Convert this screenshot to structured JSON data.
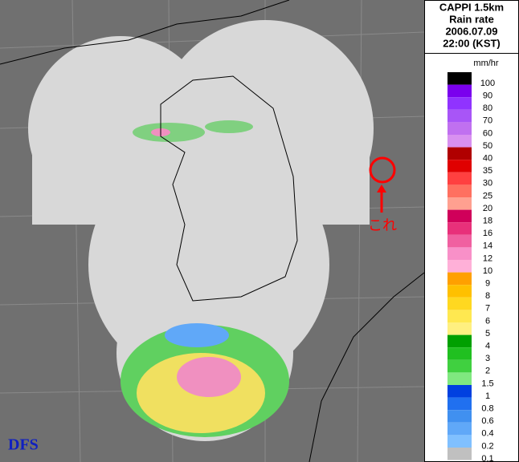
{
  "header": {
    "lines": [
      "CAPPI 1.5km",
      "Rain rate",
      "2006.07.09",
      "22:00 (KST)"
    ]
  },
  "legend": {
    "unit": "mm/hr",
    "items": [
      {
        "label": "100",
        "color": "#000000"
      },
      {
        "label": "90",
        "color": "#7a00ee"
      },
      {
        "label": "80",
        "color": "#9033ff"
      },
      {
        "label": "70",
        "color": "#a855f7"
      },
      {
        "label": "60",
        "color": "#c070f0"
      },
      {
        "label": "50",
        "color": "#d890f0"
      },
      {
        "label": "40",
        "color": "#b00000"
      },
      {
        "label": "35",
        "color": "#e00000"
      },
      {
        "label": "30",
        "color": "#ff4040"
      },
      {
        "label": "25",
        "color": "#ff7060"
      },
      {
        "label": "20",
        "color": "#ffa090"
      },
      {
        "label": "18",
        "color": "#d0005a"
      },
      {
        "label": "16",
        "color": "#e8307a"
      },
      {
        "label": "14",
        "color": "#f060a0"
      },
      {
        "label": "12",
        "color": "#f890c8"
      },
      {
        "label": "10",
        "color": "#ffb0d8"
      },
      {
        "label": "9",
        "color": "#ffa000"
      },
      {
        "label": "8",
        "color": "#ffc000"
      },
      {
        "label": "7",
        "color": "#ffd820"
      },
      {
        "label": "6",
        "color": "#ffe850"
      },
      {
        "label": "5",
        "color": "#fff080"
      },
      {
        "label": "4",
        "color": "#00a000"
      },
      {
        "label": "3",
        "color": "#20c020"
      },
      {
        "label": "2",
        "color": "#40d040"
      },
      {
        "label": "1.5",
        "color": "#80e880"
      },
      {
        "label": "1",
        "color": "#0040e0"
      },
      {
        "label": "0.8",
        "color": "#2070f0"
      },
      {
        "label": "0.6",
        "color": "#4090f0"
      },
      {
        "label": "0.4",
        "color": "#60a8f8"
      },
      {
        "label": "0.2",
        "color": "#80c0ff"
      },
      {
        "label": "0.1",
        "color": "#c0c0c0"
      }
    ]
  },
  "annotation": "これ",
  "logo": "DFS"
}
